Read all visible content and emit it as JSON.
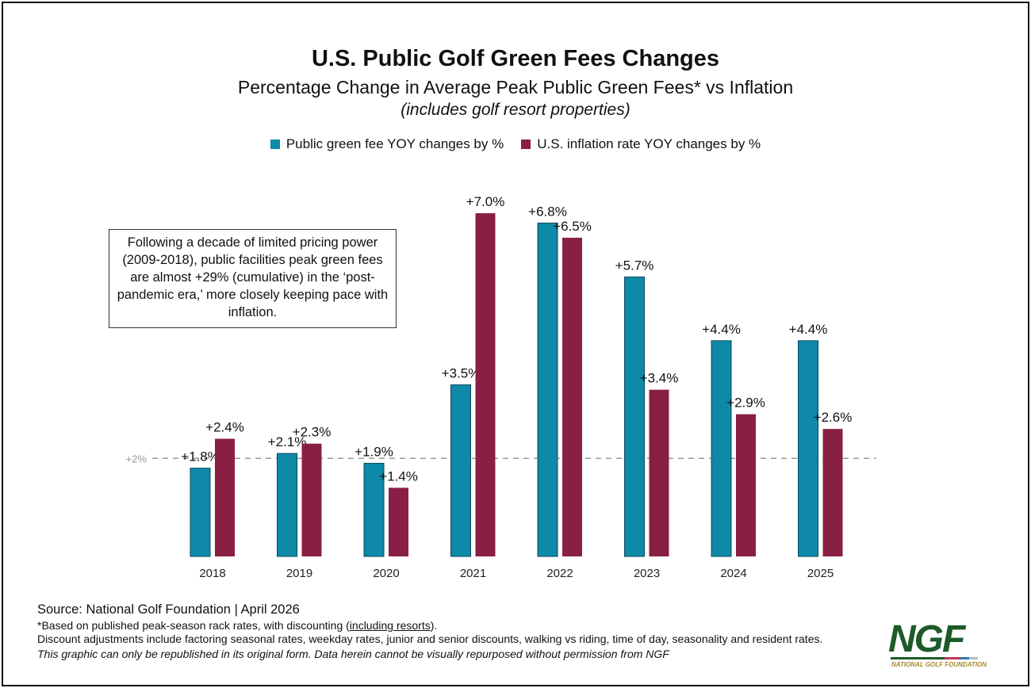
{
  "title": "U.S. Public Golf Green Fees Changes",
  "subtitle": "Percentage Change in Average Peak Public Green Fees* vs Inflation",
  "note": "(includes golf resort properties)",
  "annotation": "Following a decade of limited pricing power (2009-2018), public facilities peak green fees are almost +29% (cumulative) in the ‘post-pandemic era,’ more closely keeping pace with inflation.",
  "footer": {
    "source": "Source: National Golf Foundation | April 2026",
    "footnote1_prefix": "*Based on published peak-season rack rates, with discounting (",
    "footnote1_link": "including resorts",
    "footnote1_suffix": ").",
    "footnote2": "Discount adjustments include factoring seasonal rates, weekday rates, junior and senior discounts, walking vs riding, time of day, seasonality and resident rates.",
    "footnote3": "This graphic can only be republished in its original form. Data herein cannot be visually repurposed without permission from NGF"
  },
  "logo": {
    "text": "NGF",
    "subtext": "NATIONAL GOLF FOUNDATION"
  },
  "chart_data": {
    "type": "bar",
    "categories": [
      "2018",
      "2019",
      "2020",
      "2021",
      "2022",
      "2023",
      "2024",
      "2025"
    ],
    "series": [
      {
        "name": "Public green fee YOY changes by %",
        "color": "#0e89a8",
        "values": [
          1.8,
          2.1,
          1.9,
          3.5,
          6.8,
          5.7,
          4.4,
          4.4
        ],
        "labels": [
          "+1.8%",
          "+2.1%",
          "+1.9%",
          "+3.5%",
          "+6.8%",
          "+5.7%",
          "+4.4%",
          "+4.4%"
        ]
      },
      {
        "name": "U.S. inflation rate YOY changes by %",
        "color": "#8a1f45",
        "values": [
          2.4,
          2.3,
          1.4,
          7.0,
          6.5,
          3.4,
          2.9,
          2.6
        ],
        "labels": [
          "+2.4%",
          "+2.3%",
          "+1.4%",
          "+7.0%",
          "+6.5%",
          "+3.4%",
          "+2.9%",
          "+2.6%"
        ]
      }
    ],
    "reference_line": {
      "value": 2,
      "label": "+2%",
      "style": "dashed",
      "color": "#999999"
    },
    "ylim": [
      0,
      7
    ],
    "grid": false,
    "legend_position": "top-center"
  }
}
